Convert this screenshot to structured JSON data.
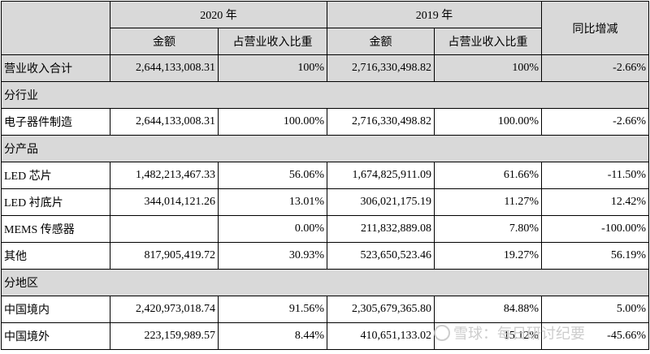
{
  "header": {
    "year1": "2020 年",
    "year2": "2019 年",
    "change": "同比增减",
    "amount1": "金额",
    "ratio1": "占营业收入比重",
    "amount2": "金额",
    "ratio2": "占营业收入比重"
  },
  "total": {
    "label": "营业收入合计",
    "amount2020": "2,644,133,008.31",
    "ratio2020": "100%",
    "amount2019": "2,716,330,498.82",
    "ratio2019": "100%",
    "change": "-2.66%"
  },
  "sections": [
    {
      "title": "分行业",
      "rows": [
        {
          "label": "电子器件制造",
          "amount2020": "2,644,133,008.31",
          "ratio2020": "100.00%",
          "amount2019": "2,716,330,498.82",
          "ratio2019": "100.00%",
          "change": "-2.66%"
        }
      ]
    },
    {
      "title": "分产品",
      "rows": [
        {
          "label": "LED 芯片",
          "amount2020": "1,482,213,467.33",
          "ratio2020": "56.06%",
          "amount2019": "1,674,825,911.09",
          "ratio2019": "61.66%",
          "change": "-11.50%"
        },
        {
          "label": "LED 衬底片",
          "amount2020": "344,014,121.26",
          "ratio2020": "13.01%",
          "amount2019": "306,021,175.19",
          "ratio2019": "11.27%",
          "change": "12.42%"
        },
        {
          "label": "MEMS 传感器",
          "amount2020": "",
          "ratio2020": "0.00%",
          "amount2019": "211,832,889.08",
          "ratio2019": "7.80%",
          "change": "-100.00%"
        },
        {
          "label": "其他",
          "amount2020": "817,905,419.72",
          "ratio2020": "30.93%",
          "amount2019": "523,650,523.46",
          "ratio2019": "19.27%",
          "change": "56.19%"
        }
      ]
    },
    {
      "title": "分地区",
      "rows": [
        {
          "label": "中国境内",
          "amount2020": "2,420,973,018.74",
          "ratio2020": "91.56%",
          "amount2019": "2,305,679,365.80",
          "ratio2019": "84.88%",
          "change": "5.00%"
        },
        {
          "label": "中国境外",
          "amount2020": "223,159,989.57",
          "ratio2020": "8.44%",
          "amount2019": "410,651,133.02",
          "ratio2019": "15.12%",
          "change": "-45.66%"
        }
      ]
    }
  ],
  "watermark": "雪球：每日研讨纪要"
}
